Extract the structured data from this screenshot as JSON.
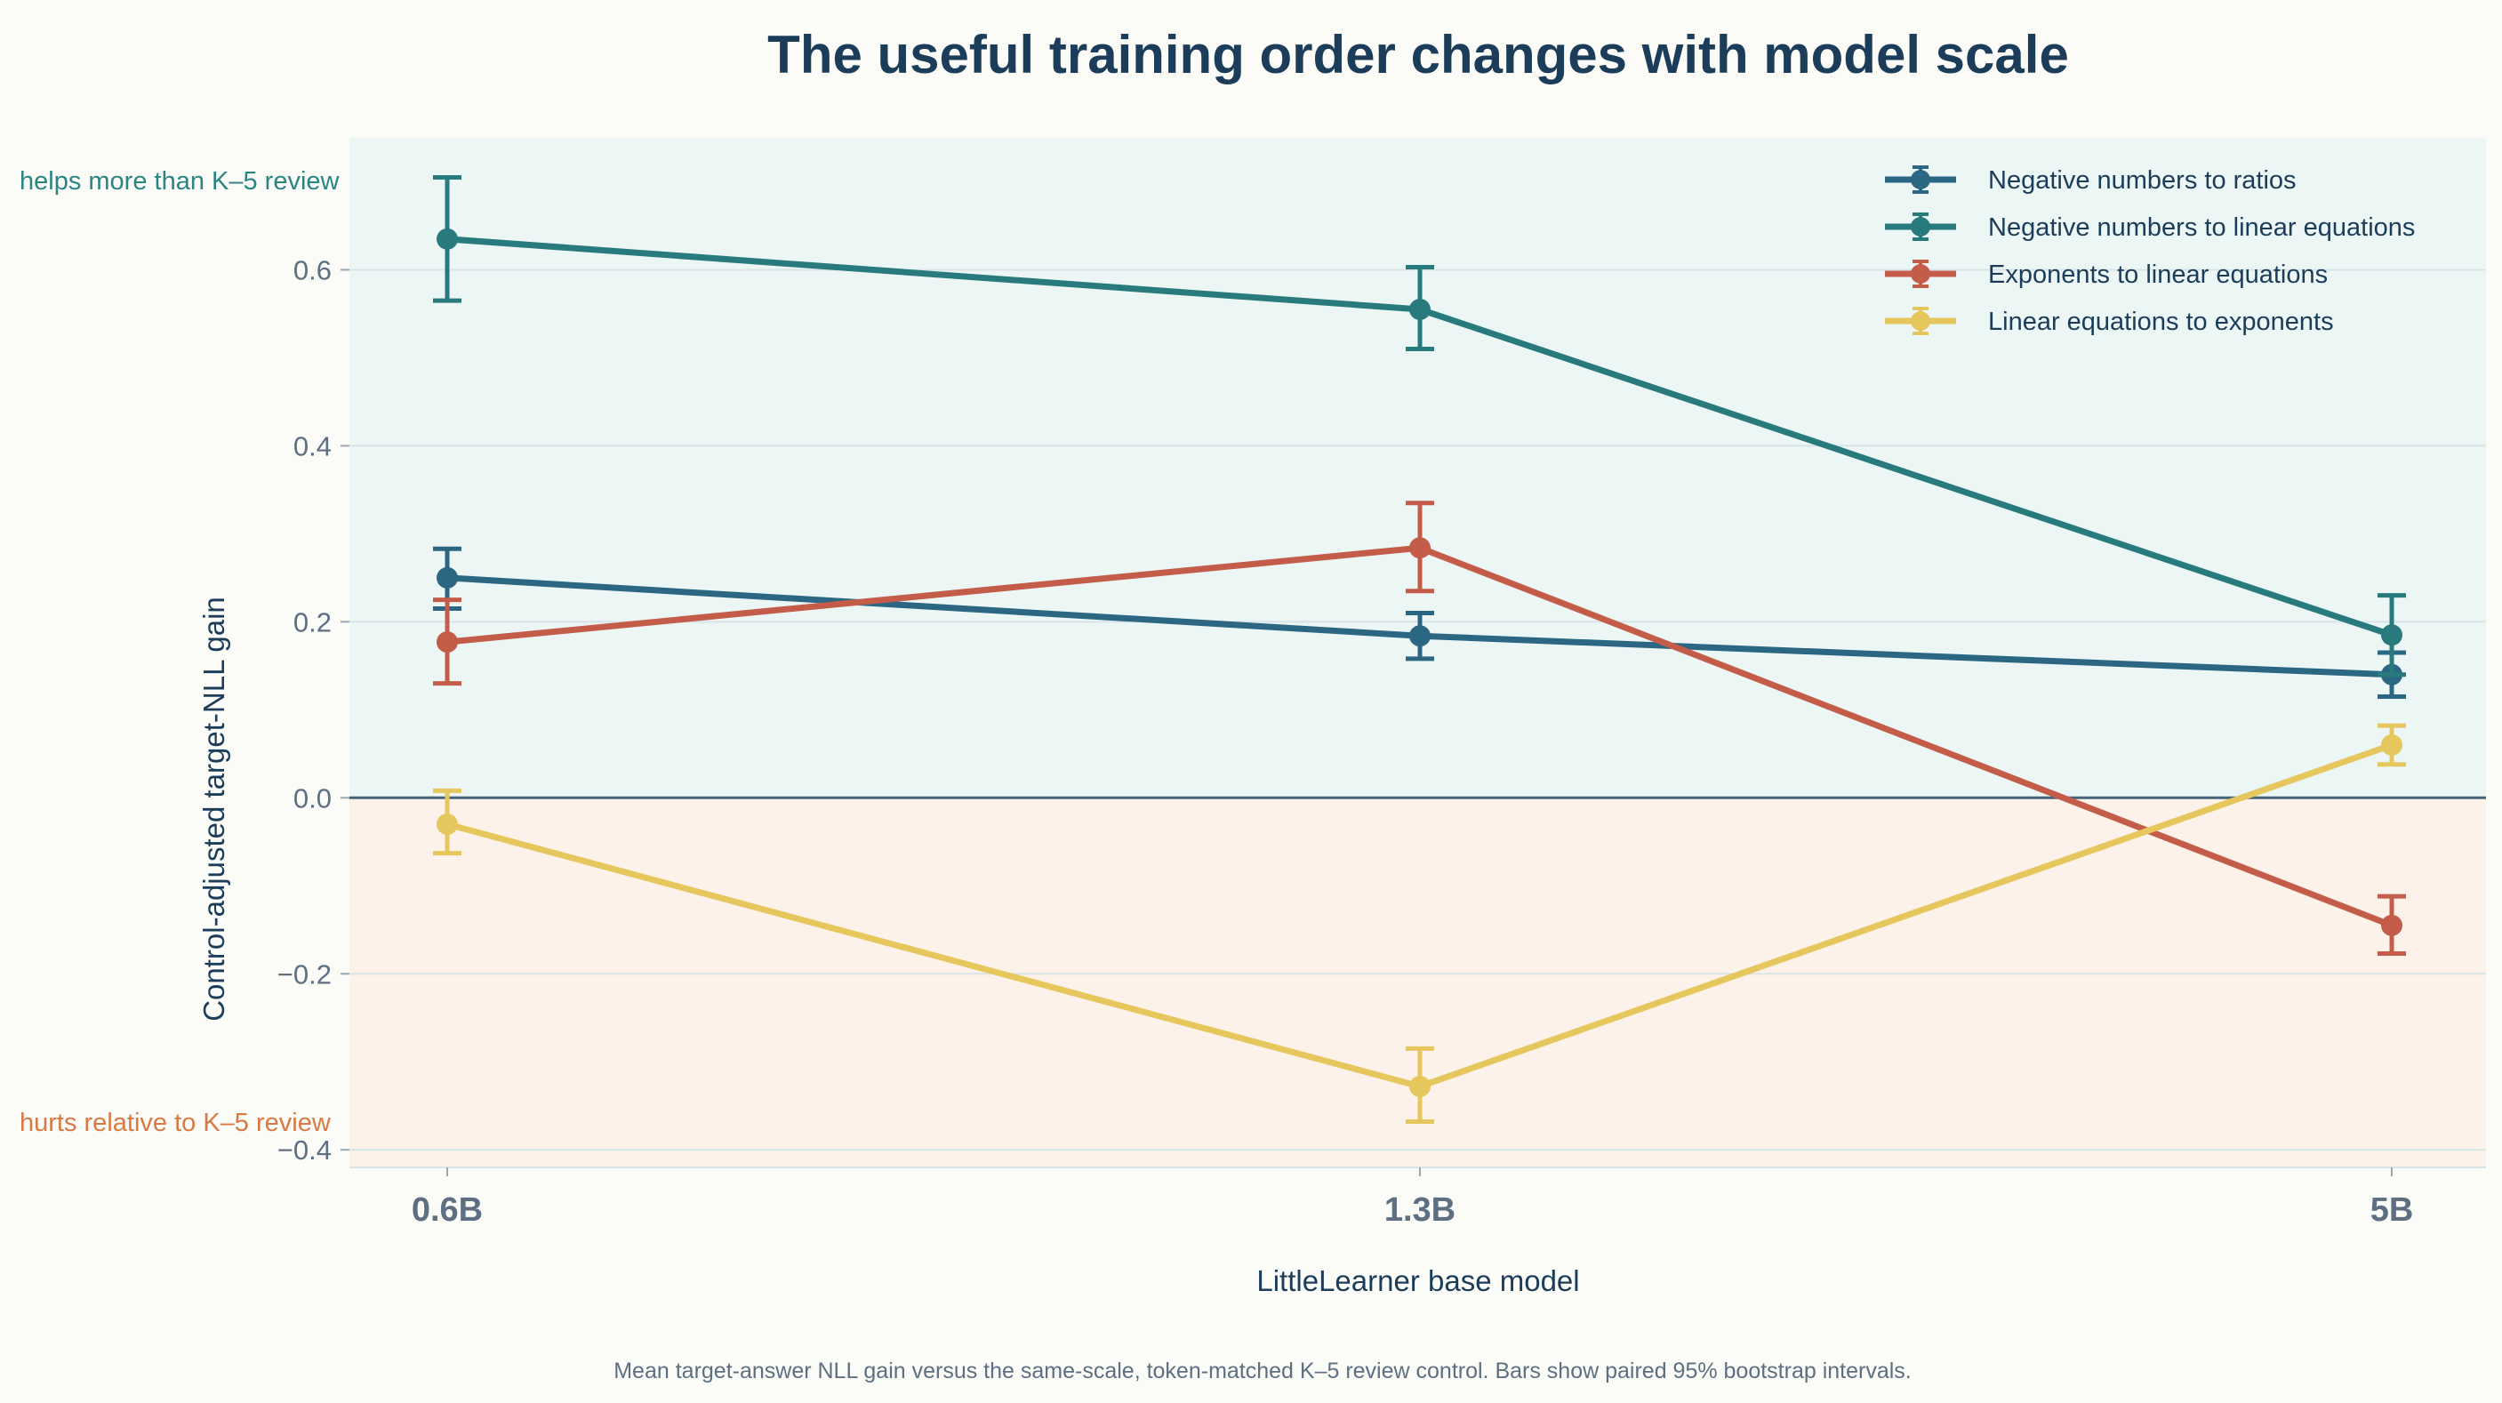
{
  "chart_data": {
    "type": "line",
    "title": "The useful training order changes with model scale",
    "xlabel": "LittleLearner base model",
    "ylabel": "Control-adjusted target-NLL gain",
    "categories": [
      "0.6B",
      "1.3B",
      "5B"
    ],
    "ylim": [
      -0.42,
      0.75
    ],
    "yticks": [
      -0.4,
      -0.2,
      0.0,
      0.2,
      0.4,
      0.6
    ],
    "ytick_labels": [
      "−0.4",
      "−0.2",
      "0.0",
      "0.2",
      "0.4",
      "0.6"
    ],
    "grid": true,
    "legend": "top-right",
    "regions": {
      "positive": {
        "label": "helps more than K–5 review",
        "fill": "#ecf6f5",
        "text_color": "#2a8583"
      },
      "negative": {
        "label": "hurts relative to K–5 review",
        "fill": "#fdf2ea",
        "text_color": "#d97a45"
      }
    },
    "series": [
      {
        "name": "Negative numbers to ratios",
        "color": "#2b6683",
        "values": [
          0.25,
          0.184,
          0.14
        ],
        "err_low": [
          0.215,
          0.158,
          0.115
        ],
        "err_high": [
          0.283,
          0.21,
          0.165
        ]
      },
      {
        "name": "Negative numbers to linear equations",
        "color": "#287a7c",
        "values": [
          0.635,
          0.555,
          0.185
        ],
        "err_low": [
          0.565,
          0.51,
          0.14
        ],
        "err_high": [
          0.705,
          0.603,
          0.23
        ]
      },
      {
        "name": "Exponents to linear equations",
        "color": "#c45c4a",
        "values": [
          0.177,
          0.284,
          -0.145
        ],
        "err_low": [
          0.13,
          0.235,
          -0.177
        ],
        "err_high": [
          0.225,
          0.335,
          -0.112
        ]
      },
      {
        "name": "Linear equations to exponents",
        "color": "#e6c75e",
        "values": [
          -0.03,
          -0.328,
          0.06
        ],
        "err_low": [
          -0.063,
          -0.368,
          0.038
        ],
        "err_high": [
          0.008,
          -0.285,
          0.082
        ]
      }
    ],
    "caption": "Mean target-answer NLL gain versus the same-scale, token-matched K–5 review control. Bars show paired 95% bootstrap intervals."
  }
}
